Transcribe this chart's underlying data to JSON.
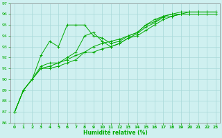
{
  "xlabel": "Humidité relative (%)",
  "background_color": "#cff0f0",
  "grid_color": "#a8d8d8",
  "line_color": "#00aa00",
  "xlim": [
    -0.5,
    23.5
  ],
  "ylim": [
    86,
    97
  ],
  "xticks": [
    0,
    1,
    2,
    3,
    4,
    5,
    6,
    7,
    8,
    9,
    10,
    11,
    12,
    13,
    14,
    15,
    16,
    17,
    18,
    19,
    20,
    21,
    22,
    23
  ],
  "yticks": [
    86,
    87,
    88,
    89,
    90,
    91,
    92,
    93,
    94,
    95,
    96,
    97
  ],
  "lines": [
    {
      "x": [
        0,
        1,
        2,
        3,
        4,
        5,
        6,
        7,
        8,
        9,
        10,
        11,
        12,
        13,
        14,
        15,
        16,
        17,
        18,
        19,
        20,
        21,
        22,
        23
      ],
      "y": [
        87.0,
        89.0,
        90.0,
        92.2,
        93.5,
        93.0,
        95.0,
        95.0,
        95.0,
        94.0,
        93.8,
        93.3,
        93.5,
        94.0,
        94.3,
        95.0,
        95.3,
        95.8,
        96.0,
        96.0,
        96.0,
        96.0,
        96.0,
        96.0
      ]
    },
    {
      "x": [
        0,
        1,
        2,
        3,
        4,
        5,
        6,
        7,
        8,
        9,
        10,
        11,
        12,
        13,
        14,
        15,
        16,
        17,
        18,
        19,
        20,
        21,
        22,
        23
      ],
      "y": [
        87.0,
        89.0,
        90.0,
        91.2,
        91.5,
        91.5,
        92.0,
        92.5,
        94.0,
        94.3,
        93.5,
        93.0,
        93.3,
        93.8,
        94.2,
        94.8,
        95.2,
        95.7,
        95.8,
        96.0,
        96.0,
        96.0,
        96.0,
        96.0
      ]
    },
    {
      "x": [
        0,
        1,
        2,
        3,
        4,
        5,
        6,
        7,
        8,
        9,
        10,
        11,
        12,
        13,
        14,
        15,
        16,
        17,
        18,
        19,
        20,
        21,
        22,
        23
      ],
      "y": [
        87.0,
        89.0,
        90.0,
        91.0,
        91.0,
        91.2,
        91.5,
        91.8,
        92.5,
        92.5,
        92.8,
        93.0,
        93.3,
        93.8,
        94.0,
        94.5,
        95.0,
        95.5,
        95.8,
        96.0,
        96.2,
        96.2,
        96.2,
        96.2
      ]
    },
    {
      "x": [
        0,
        1,
        2,
        3,
        4,
        5,
        6,
        7,
        8,
        9,
        10,
        11,
        12,
        13,
        14,
        15,
        16,
        17,
        18,
        19,
        20,
        21,
        22,
        23
      ],
      "y": [
        87.0,
        89.0,
        90.0,
        91.0,
        91.2,
        91.5,
        91.8,
        92.2,
        92.5,
        93.0,
        93.3,
        93.5,
        93.7,
        94.0,
        94.3,
        95.0,
        95.5,
        95.8,
        96.0,
        96.2,
        96.2,
        96.2,
        96.2,
        96.2
      ]
    }
  ]
}
